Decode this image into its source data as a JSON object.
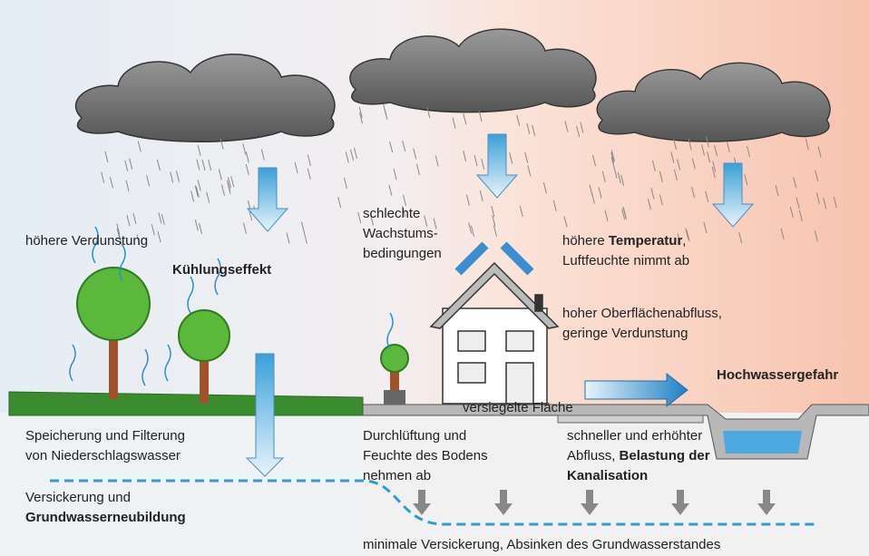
{
  "labels": [
    {
      "lines": [
        [
          {
            "text": "höhere Verdunstung"
          }
        ]
      ]
    },
    {
      "lines": [
        [
          {
            "text": "Kühlungseffekt",
            "bold": true
          }
        ]
      ]
    },
    {
      "lines": [
        [
          {
            "text": "schlechte"
          }
        ],
        [
          {
            "text": "Wachstums-"
          }
        ],
        [
          {
            "text": "bedingungen"
          }
        ]
      ]
    },
    {
      "lines": [
        [
          {
            "text": "höhere "
          },
          {
            "text": "Temperatur",
            "bold": true
          },
          {
            "text": ","
          }
        ],
        [
          {
            "text": "Luftfeuchte nimmt ab"
          }
        ]
      ]
    },
    {
      "lines": [
        [
          {
            "text": "hoher Oberflächenabfluss,"
          }
        ],
        [
          {
            "text": "geringe Verdunstung"
          }
        ]
      ]
    },
    {
      "lines": [
        [
          {
            "text": "Hochwassergefahr",
            "bold": true
          }
        ]
      ]
    },
    {
      "lines": [
        [
          {
            "text": "versiegelte Fläche"
          }
        ]
      ]
    },
    {
      "lines": [
        [
          {
            "text": "Speicherung und Filterung"
          }
        ],
        [
          {
            "text": "von Niederschlagswasser"
          }
        ]
      ]
    },
    {
      "lines": [
        [
          {
            "text": "Durchlüftung und"
          }
        ],
        [
          {
            "text": "Feuchte des Bodens"
          }
        ],
        [
          {
            "text": "nehmen ab"
          }
        ]
      ]
    },
    {
      "lines": [
        [
          {
            "text": "schneller und erhöhter"
          }
        ],
        [
          {
            "text": "Abfluss, "
          },
          {
            "text": "Belastung der",
            "bold": true
          }
        ],
        [
          {
            "text": "Kanalisation",
            "bold": true
          }
        ]
      ]
    },
    {
      "lines": [
        [
          {
            "text": "Versickerung und"
          }
        ],
        [
          {
            "text": "Grundwasserneubildung",
            "bold": true
          }
        ]
      ]
    },
    {
      "lines": [
        [
          {
            "text": "minimale Versickerung, Absinken des Grundwasserstandes"
          }
        ]
      ]
    }
  ]
}
